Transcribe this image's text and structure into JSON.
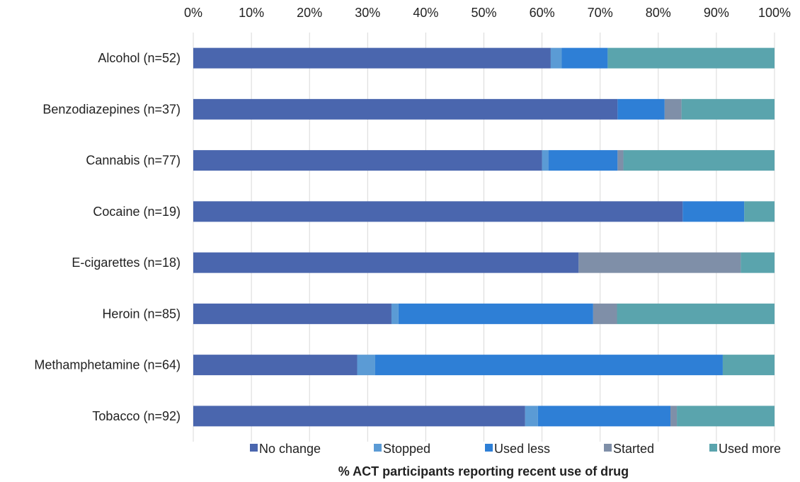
{
  "chart_data": {
    "type": "bar",
    "orientation": "horizontal",
    "stacked": true,
    "xlabel": "% ACT participants reporting recent use of drug",
    "ylabel": "",
    "xlim": [
      0,
      100
    ],
    "x_ticks": [
      "0%",
      "10%",
      "20%",
      "30%",
      "40%",
      "50%",
      "60%",
      "70%",
      "80%",
      "90%",
      "100%"
    ],
    "x_axis_position": "top",
    "grid": true,
    "legend_position": "bottom",
    "categories": [
      "Alcohol (n=52)",
      "Benzodiazepines (n=37)",
      "Cannabis (n=77)",
      "Cocaine (n=19)",
      "E-cigarettes (n=18)",
      "Heroin (n=85)",
      "Methamphetamine (n=64)",
      "Tobacco (n=92)"
    ],
    "series": [
      {
        "name": "No change",
        "color": "#4a66ae",
        "values": [
          61.5,
          73.0,
          60.0,
          84.2,
          66.3,
          34.1,
          28.2,
          57.1
        ]
      },
      {
        "name": "Stopped",
        "color": "#5b9bd5",
        "values": [
          1.9,
          0.0,
          1.1,
          0.0,
          0.0,
          1.2,
          3.1,
          2.2
        ]
      },
      {
        "name": "Used less",
        "color": "#2e7fd6",
        "values": [
          7.9,
          8.1,
          11.9,
          10.6,
          0.0,
          33.5,
          59.8,
          22.8
        ]
      },
      {
        "name": "Started",
        "color": "#7f8fa8",
        "values": [
          0.0,
          2.9,
          1.0,
          0.0,
          27.9,
          4.1,
          0.0,
          1.1
        ]
      },
      {
        "name": "Used more",
        "color": "#5aa4ad",
        "values": [
          28.7,
          16.0,
          26.0,
          5.2,
          5.8,
          27.1,
          8.9,
          16.8
        ]
      }
    ]
  }
}
